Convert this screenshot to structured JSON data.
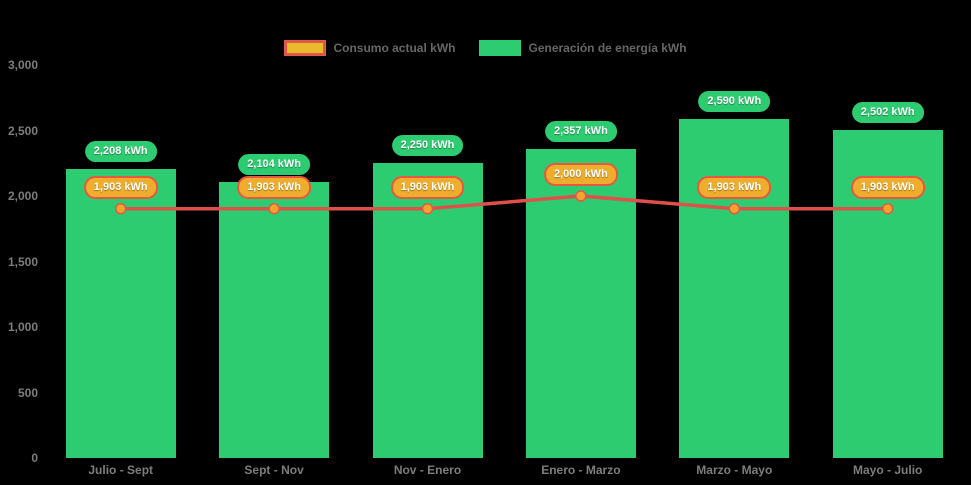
{
  "chart_data": {
    "type": "bar",
    "title": "",
    "categories": [
      "Julio - Sept",
      "Sept - Nov",
      "Nov - Enero",
      "Enero - Marzo",
      "Marzo - Mayo",
      "Mayo - Julio"
    ],
    "series": [
      {
        "name": "Consumo actual kWh",
        "type": "line",
        "values": [
          1903,
          1903,
          1903,
          2000,
          1903,
          1903
        ],
        "line_color": "#E0504A",
        "marker_fill": "#F2A52B",
        "marker_border": "#E2574C",
        "swatch_fill": "#E7BB2B",
        "swatch_border": "#E2574C",
        "label_bg": "#EFAD2D",
        "label_border": "#E8573F",
        "label_text_color": "#FFFFFF"
      },
      {
        "name": "Generación de energía kWh",
        "type": "bar",
        "values": [
          2208,
          2104,
          2250,
          2357,
          2590,
          2502
        ],
        "bar_color": "#2ECC71",
        "swatch_fill": "#2ECC71",
        "swatch_border": null,
        "label_bg": "#2ECC71",
        "label_text_color": "#FFFFFF"
      }
    ],
    "value_suffix": " kWh",
    "yticks": [
      0,
      500,
      1000,
      1500,
      2000,
      2500,
      3000
    ],
    "ylim": [
      0,
      3000
    ],
    "grid": false,
    "legend_position": "top",
    "colors": {
      "background": "#000000",
      "axis_text": "#7D7D7D",
      "legend_text": "#666666"
    }
  }
}
